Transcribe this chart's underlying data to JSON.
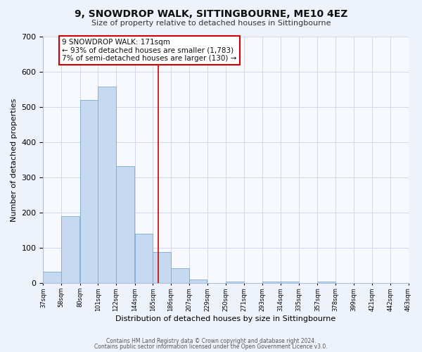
{
  "title": "9, SNOWDROP WALK, SITTINGBOURNE, ME10 4EZ",
  "subtitle": "Size of property relative to detached houses in Sittingbourne",
  "xlabel": "Distribution of detached houses by size in Sittingbourne",
  "ylabel": "Number of detached properties",
  "bar_left_edges": [
    37,
    58,
    80,
    101,
    122,
    144,
    165,
    186,
    207,
    229,
    250,
    271,
    293,
    314,
    335,
    357,
    378,
    399,
    421,
    442
  ],
  "bar_heights": [
    33,
    190,
    519,
    557,
    332,
    140,
    88,
    42,
    11,
    0,
    5,
    0,
    5,
    5,
    0,
    5,
    0,
    0,
    0,
    0
  ],
  "bar_color": "#c5daf0",
  "bar_edge_color": "#7aaaca",
  "bin_width": 21,
  "tick_labels": [
    "37sqm",
    "58sqm",
    "80sqm",
    "101sqm",
    "122sqm",
    "144sqm",
    "165sqm",
    "186sqm",
    "207sqm",
    "229sqm",
    "250sqm",
    "271sqm",
    "293sqm",
    "314sqm",
    "335sqm",
    "357sqm",
    "378sqm",
    "399sqm",
    "421sqm",
    "442sqm",
    "463sqm"
  ],
  "property_value": 171,
  "annotation_line1": "9 SNOWDROP WALK: 171sqm",
  "annotation_line2": "← 93% of detached houses are smaller (1,783)",
  "annotation_line3": "7% of semi-detached houses are larger (130) →",
  "annotation_box_color": "#ffffff",
  "annotation_box_edge_color": "#cc0000",
  "vline_color": "#cc0000",
  "ylim": [
    0,
    700
  ],
  "yticks": [
    0,
    100,
    200,
    300,
    400,
    500,
    600,
    700
  ],
  "footer_line1": "Contains HM Land Registry data © Crown copyright and database right 2024.",
  "footer_line2": "Contains public sector information licensed under the Open Government Licence v3.0.",
  "bg_color": "#eef2fb",
  "plot_bg_color": "#f7f9ff",
  "grid_color": "#d0d8ee"
}
